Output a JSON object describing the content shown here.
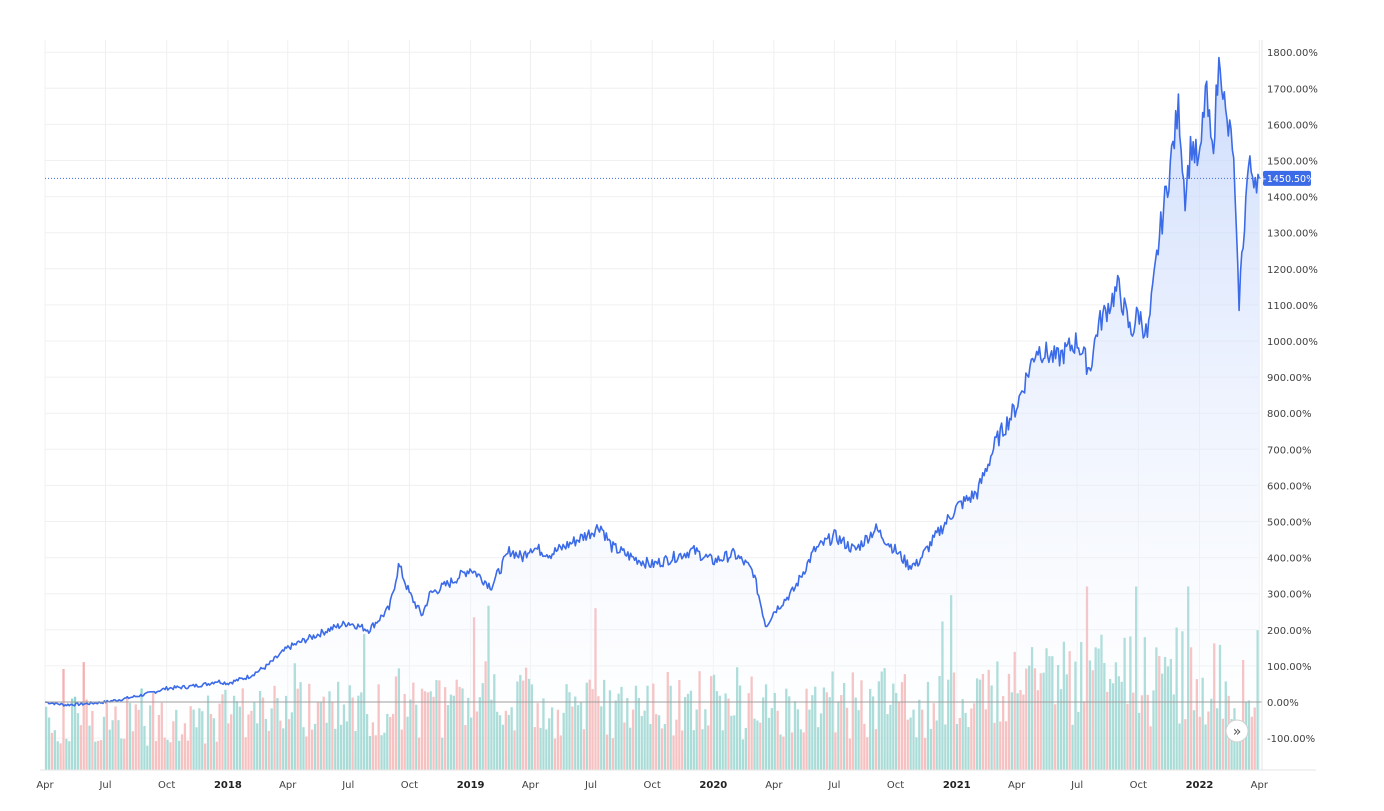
{
  "chart_data": {
    "type": "area",
    "title": "",
    "xlabel": "",
    "ylabel": "",
    "y_unit": "%",
    "ylim": [
      -165,
      1815
    ],
    "xlim": [
      "2017-04-01",
      "2022-04-05"
    ],
    "grid": true,
    "y_ticks": [
      "1800.00%",
      "1700.00%",
      "1600.00%",
      "1500.00%",
      "1400.00%",
      "1300.00%",
      "1200.00%",
      "1100.00%",
      "1000.00%",
      "900.00%",
      "800.00%",
      "700.00%",
      "600.00%",
      "500.00%",
      "400.00%",
      "300.00%",
      "200.00%",
      "100.00%",
      "0.00%",
      "-100.00%"
    ],
    "y_tick_values": [
      1800,
      1700,
      1600,
      1500,
      1400,
      1300,
      1200,
      1100,
      1000,
      900,
      800,
      700,
      600,
      500,
      400,
      300,
      200,
      100,
      0,
      -100
    ],
    "x_ticks": [
      {
        "label": "Apr",
        "date": "2017-04-01",
        "bold": false
      },
      {
        "label": "Jul",
        "date": "2017-07-01",
        "bold": false
      },
      {
        "label": "Oct",
        "date": "2017-10-01",
        "bold": false
      },
      {
        "label": "2018",
        "date": "2018-01-01",
        "bold": true
      },
      {
        "label": "Apr",
        "date": "2018-04-01",
        "bold": false
      },
      {
        "label": "Jul",
        "date": "2018-07-01",
        "bold": false
      },
      {
        "label": "Oct",
        "date": "2018-10-01",
        "bold": false
      },
      {
        "label": "2019",
        "date": "2019-01-01",
        "bold": true
      },
      {
        "label": "Apr",
        "date": "2019-04-01",
        "bold": false
      },
      {
        "label": "Jul",
        "date": "2019-07-01",
        "bold": false
      },
      {
        "label": "Oct",
        "date": "2019-10-01",
        "bold": false
      },
      {
        "label": "2020",
        "date": "2020-01-01",
        "bold": true
      },
      {
        "label": "Apr",
        "date": "2020-04-01",
        "bold": false
      },
      {
        "label": "Jul",
        "date": "2020-07-01",
        "bold": false
      },
      {
        "label": "Oct",
        "date": "2020-10-01",
        "bold": false
      },
      {
        "label": "2021",
        "date": "2021-01-01",
        "bold": true
      },
      {
        "label": "Apr",
        "date": "2021-04-01",
        "bold": false
      },
      {
        "label": "Jul",
        "date": "2021-07-01",
        "bold": false
      },
      {
        "label": "Oct",
        "date": "2021-10-01",
        "bold": false
      },
      {
        "label": "2022",
        "date": "2022-01-01",
        "bold": true
      },
      {
        "label": "Apr",
        "date": "2022-04-01",
        "bold": false
      }
    ],
    "current_value": 1450.5,
    "current_label": "+1450.50%",
    "series": [
      {
        "x": [
          "2017-04-01",
          "2017-05-01",
          "2017-06-01",
          "2017-07-01",
          "2017-08-01",
          "2017-09-01",
          "2017-10-01",
          "2017-11-01",
          "2017-12-01",
          "2017-12-15",
          "2018-01-01",
          "2018-02-01",
          "2018-03-01",
          "2018-04-01",
          "2018-05-01",
          "2018-06-01",
          "2018-07-01",
          "2018-08-01",
          "2018-09-01",
          "2018-09-15",
          "2018-10-01",
          "2018-10-20",
          "2018-11-01",
          "2018-12-01",
          "2019-01-01",
          "2019-02-01",
          "2019-03-01",
          "2019-03-20",
          "2019-04-01",
          "2019-05-01",
          "2019-06-01",
          "2019-07-01",
          "2019-07-15",
          "2019-08-01",
          "2019-09-01",
          "2019-10-01",
          "2019-11-01",
          "2019-12-01",
          "2020-01-01",
          "2020-02-01",
          "2020-02-20",
          "2020-03-01",
          "2020-03-20",
          "2020-04-01",
          "2020-05-01",
          "2020-06-01",
          "2020-07-01",
          "2020-08-01",
          "2020-09-01",
          "2020-10-01",
          "2020-10-20",
          "2020-11-01",
          "2020-12-01",
          "2021-01-01",
          "2021-02-01",
          "2021-03-01",
          "2021-04-01",
          "2021-05-01",
          "2021-06-01",
          "2021-07-01",
          "2021-07-20",
          "2021-08-01",
          "2021-09-01",
          "2021-09-20",
          "2021-10-01",
          "2021-10-15",
          "2021-11-01",
          "2021-11-15",
          "2021-12-01",
          "2021-12-10",
          "2021-12-20",
          "2022-01-01",
          "2022-01-10",
          "2022-01-20",
          "2022-02-01",
          "2022-02-10",
          "2022-02-20",
          "2022-03-01",
          "2022-03-15",
          "2022-04-01"
        ],
        "values": [
          0,
          -8,
          -5,
          0,
          10,
          22,
          38,
          42,
          50,
          58,
          52,
          70,
          100,
          150,
          175,
          200,
          220,
          200,
          260,
          380,
          300,
          240,
          300,
          330,
          370,
          320,
          420,
          400,
          430,
          410,
          440,
          470,
          490,
          430,
          400,
          380,
          400,
          420,
          390,
          410,
          380,
          360,
          210,
          250,
          310,
          420,
          460,
          420,
          480,
          420,
          380,
          380,
          460,
          540,
          580,
          720,
          820,
          980,
          950,
          1000,
          920,
          1040,
          1150,
          1020,
          1080,
          1010,
          1280,
          1450,
          1650,
          1400,
          1550,
          1480,
          1700,
          1520,
          1800,
          1600,
          1550,
          1100,
          1480,
          1450
        ]
      }
    ],
    "volume_range": [
      0,
      320
    ],
    "volume_samples": 420,
    "colors": {
      "line": "#3c6be8",
      "area_top": "#bcd0fb",
      "area_bottom": "#ffffff",
      "volume_up": "#80cbc4",
      "volume_down": "#f3a3a3",
      "label_bg": "#3c6be8",
      "label_text": "#ffffff",
      "grid": "#f0f0f0",
      "axis_text": "#3f3f3f"
    }
  },
  "controls": {
    "scroll_icon": "double-chevron-right-icon",
    "scroll_glyph": "»"
  }
}
